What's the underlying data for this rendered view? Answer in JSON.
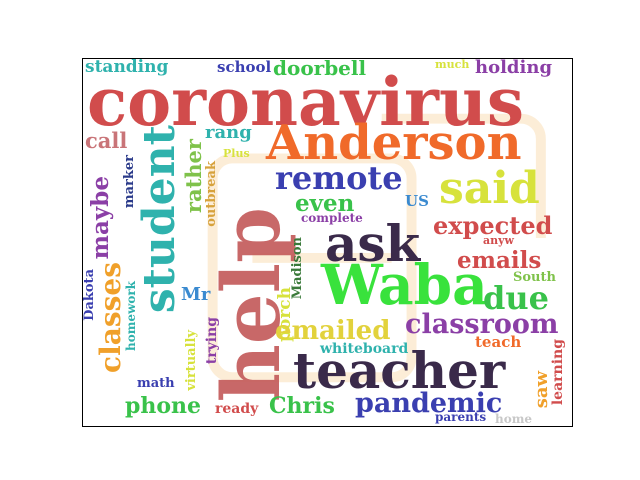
{
  "words": [
    {
      "text": "standing",
      "color": "#2fb2ad"
    },
    {
      "text": "school",
      "color": "#3a3fb0"
    },
    {
      "text": "doorbell",
      "color": "#39c24a"
    },
    {
      "text": "much",
      "color": "#d7e23c"
    },
    {
      "text": "holding",
      "color": "#8b3fa6"
    },
    {
      "text": "coronavirus",
      "color": "#d14c4c"
    },
    {
      "text": "call",
      "color": "#c97478"
    },
    {
      "text": "rang",
      "color": "#2fb2ad"
    },
    {
      "text": "Anderson",
      "color": "#f06a2a"
    },
    {
      "text": "Plus",
      "color": "#d7e23c"
    },
    {
      "text": "student",
      "color": "#2fb2ad"
    },
    {
      "text": "rather",
      "color": "#7fc24a"
    },
    {
      "text": "maybe",
      "color": "#8b3fa6"
    },
    {
      "text": "marker",
      "color": "#2a3a8a"
    },
    {
      "text": "outbreak",
      "color": "#d7a23c"
    },
    {
      "text": "remote",
      "color": "#3a3fb0"
    },
    {
      "text": "said",
      "color": "#d7e23c"
    },
    {
      "text": "even",
      "color": "#39c24a"
    },
    {
      "text": "US",
      "color": "#3a8ad0"
    },
    {
      "text": "complete",
      "color": "#8b3fa6"
    },
    {
      "text": "expected",
      "color": "#d14c4c"
    },
    {
      "text": "help",
      "color": "#c45c5c"
    },
    {
      "text": "ask",
      "color": "#3a2a4a"
    },
    {
      "text": "anyw",
      "color": "#d14c4c"
    },
    {
      "text": "emails",
      "color": "#d14c4c"
    },
    {
      "text": "South",
      "color": "#7fc24a"
    },
    {
      "text": "Dakota",
      "color": "#3a3fb0"
    },
    {
      "text": "classes",
      "color": "#f0a02a"
    },
    {
      "text": "homework",
      "color": "#2fb2ad"
    },
    {
      "text": "Mr",
      "color": "#3a8ad0"
    },
    {
      "text": "Waba",
      "color": "#39e23c"
    },
    {
      "text": "due",
      "color": "#39c24a"
    },
    {
      "text": "porch",
      "color": "#d7e23c"
    },
    {
      "text": "Madison",
      "color": "#3a7a3a"
    },
    {
      "text": "trying",
      "color": "#8b3fa6"
    },
    {
      "text": "virtually",
      "color": "#d7e23c"
    },
    {
      "text": "classroom",
      "color": "#8b3fa6"
    },
    {
      "text": "emailed",
      "color": "#e2d23c"
    },
    {
      "text": "whiteboard",
      "color": "#2fb2ad"
    },
    {
      "text": "teach",
      "color": "#f06a2a"
    },
    {
      "text": "teacher",
      "color": "#3a2a4a"
    },
    {
      "text": "saw",
      "color": "#f0a02a"
    },
    {
      "text": "learning",
      "color": "#d14c4c"
    },
    {
      "text": "math",
      "color": "#3a3fb0"
    },
    {
      "text": "phone",
      "color": "#39c24a"
    },
    {
      "text": "ready",
      "color": "#d14c4c"
    },
    {
      "text": "Chris",
      "color": "#39c24a"
    },
    {
      "text": "pandemic",
      "color": "#3a3fb0"
    },
    {
      "text": "parents",
      "color": "#3a3fb0"
    },
    {
      "text": "home",
      "color": "#c8c8c8"
    }
  ],
  "mask_color": "#f0a02a"
}
